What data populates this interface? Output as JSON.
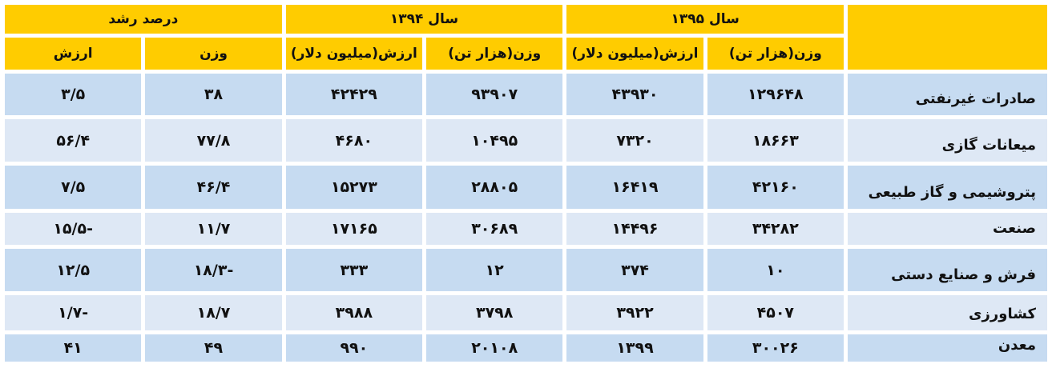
{
  "header": {
    "year_1395": "سال ۱۳۹۵",
    "year_1394": "سال ۱۳۹۴",
    "growth": "درصد رشد",
    "weight_kt": "وزن(هزار تن)",
    "value_musd": "ارزش(میلیون دلار)",
    "weight": "وزن",
    "value": "ارزش"
  },
  "colors": {
    "header": "#ffcc00",
    "row_dark": "#c6dbf1",
    "row_light": "#dee8f5"
  },
  "rows": [
    {
      "label": "صادرات غیرنفتی",
      "w95": "۱۲۹۶۴۸",
      "v95": "۴۳۹۳۰",
      "w94": "۹۳۹۰۷",
      "v94": "۴۲۴۲۹",
      "gw": "۳۸",
      "gv": "۳/۵"
    },
    {
      "label": "میعانات گازی",
      "w95": "۱۸۶۶۳",
      "v95": "۷۳۲۰",
      "w94": "۱۰۴۹۵",
      "v94": "۴۶۸۰",
      "gw": "۷۷/۸",
      "gv": "۵۶/۴"
    },
    {
      "label": "پتروشیمی و گاز طبیعی",
      "w95": "۴۲۱۶۰",
      "v95": "۱۶۴۱۹",
      "w94": "۲۸۸۰۵",
      "v94": "۱۵۲۷۳",
      "gw": "۴۶/۴",
      "gv": "۷/۵"
    },
    {
      "label": "صنعت",
      "w95": "۳۴۲۸۲",
      "v95": "۱۴۴۹۶",
      "w94": "۳۰۶۸۹",
      "v94": "۱۷۱۶۵",
      "gw": "۱۱/۷",
      "gv": "-۱۵/۵"
    },
    {
      "label": "فرش و صنایع دستی",
      "w95": "۱۰",
      "v95": "۳۷۴",
      "w94": "۱۲",
      "v94": "۳۳۳",
      "gw": "-۱۸/۳",
      "gv": "۱۲/۵"
    },
    {
      "label": "کشاورزی",
      "w95": "۴۵۰۷",
      "v95": "۳۹۲۲",
      "w94": "۳۷۹۸",
      "v94": "۳۹۸۸",
      "gw": "۱۸/۷",
      "gv": "-۱/۷"
    },
    {
      "label": "معدن",
      "w95": "۳۰۰۲۶",
      "v95": "۱۳۹۹",
      "w94": "۲۰۱۰۸",
      "v94": "۹۹۰",
      "gw": "۴۹",
      "gv": "۴۱"
    }
  ]
}
